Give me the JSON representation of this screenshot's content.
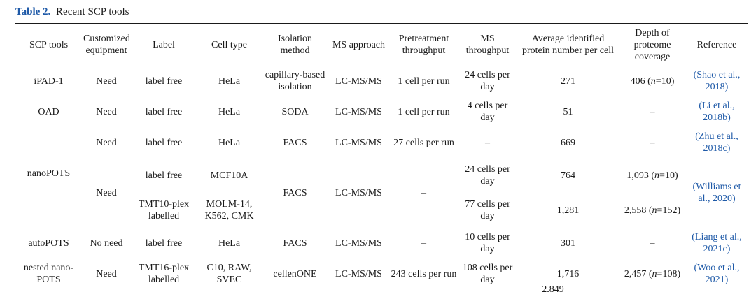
{
  "caption": {
    "label": "Table 2.",
    "title": "Recent SCP tools"
  },
  "headers": [
    "SCP tools",
    "Customized equipment",
    "Label",
    "Cell type",
    "Isolation method",
    "MS approach",
    "Pretreatment throughput",
    "MS throughput",
    "Average identified protein number per cell",
    "Depth of proteome coverage",
    "Reference"
  ],
  "rows": {
    "ipad": {
      "tool": "iPAD-1",
      "equipment": "Need",
      "label": "label free",
      "cell_type": "HeLa",
      "isolation": "capillary-based isolation",
      "ms": "LC-MS/MS",
      "pretreat": "1 cell per run",
      "throughput": "24 cells per day",
      "protein_number": "271",
      "depth": "406 (n=10)",
      "reference": "(Shao et al., 2018)"
    },
    "oad": {
      "tool": "OAD",
      "equipment": "Need",
      "label": "label free",
      "cell_type": "HeLa",
      "isolation": "SODA",
      "ms": "LC-MS/MS",
      "pretreat": "1 cell per run",
      "throughput": "4 cells per day",
      "protein_number": "51",
      "depth": "–",
      "reference": "(Li et al., 2018b)"
    },
    "zhu": {
      "tool": "",
      "equipment": "Need",
      "label": "label free",
      "cell_type": "HeLa",
      "isolation": "FACS",
      "ms": "LC-MS/MS",
      "pretreat": "27 cells per run",
      "throughput": "–",
      "protein_number": "669",
      "depth": "–",
      "reference": "(Zhu et al., 2018c)"
    },
    "nanopots": {
      "tool": "nanoPOTS",
      "equipment": "Need",
      "label_a": "label free",
      "label_b": "TMT10-plex labelled",
      "cell_type_a": "MCF10A",
      "cell_type_b": "MOLM-14, K562, CMK",
      "isolation": "FACS",
      "ms": "LC-MS/MS",
      "pretreat": "–",
      "throughput_a": "24 cells per day",
      "throughput_b": "77 cells per day",
      "protein_number_a": "764",
      "protein_number_b": "1,281",
      "depth_a": "1,093 (n=10)",
      "depth_b": "2,558 (n=152)",
      "reference": "(Williams et al., 2020)"
    },
    "autopots": {
      "tool": "autoPOTS",
      "equipment": "No need",
      "label": "label free",
      "cell_type": "HeLa",
      "isolation": "FACS",
      "ms": "LC-MS/MS",
      "pretreat": "–",
      "throughput": "10 cells per day",
      "protein_number": "301",
      "depth": "–",
      "reference": "(Liang et al., 2021c)"
    },
    "nested": {
      "tool": "nested nano-POTS",
      "equipment": "Need",
      "label": "TMT16-plex labelled",
      "cell_type": "C10, RAW, SVEC",
      "isolation": "cellenONE",
      "ms": "LC-MS/MS",
      "pretreat": "243 cells per run",
      "throughput": "108 cells per day",
      "protein_number": "1,716",
      "depth": "2,457 (n=108)",
      "reference": "(Woo et al., 2021)"
    }
  },
  "partial_next_row_value": "2,849"
}
